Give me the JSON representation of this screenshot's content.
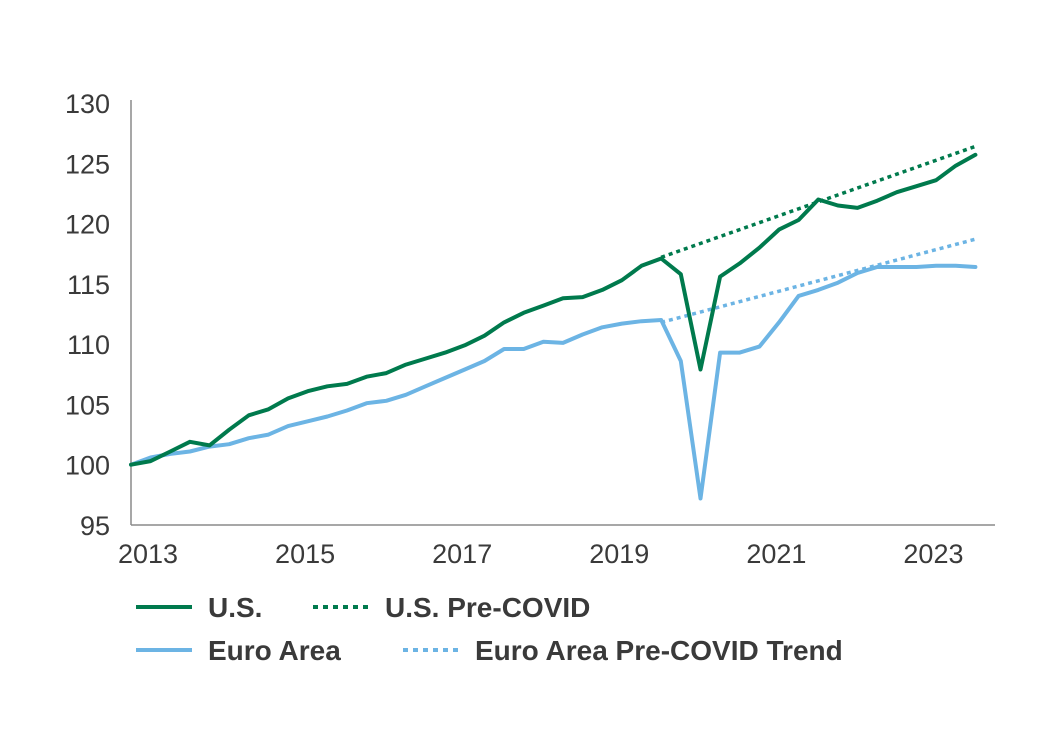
{
  "chart_data": {
    "type": "line",
    "ylim": [
      95,
      130
    ],
    "xlim": [
      2013.0,
      2024.0
    ],
    "yticks": [
      95,
      100,
      105,
      110,
      115,
      120,
      125,
      130
    ],
    "xticks": [
      2013,
      2015,
      2017,
      2019,
      2021,
      2023
    ],
    "ytick_labels": [
      "95",
      "100",
      "105",
      "110",
      "115",
      "120",
      "125",
      "130"
    ],
    "xtick_labels": [
      "2013",
      "2015",
      "2017",
      "2019",
      "2021",
      "2023"
    ],
    "grid": false,
    "legend_position": "bottom",
    "series": [
      {
        "name": "U.S.",
        "color": "#007A4D",
        "style": "solid",
        "points": [
          [
            2013.0,
            100.0
          ],
          [
            2013.25,
            100.3
          ],
          [
            2013.5,
            101.1
          ],
          [
            2013.75,
            101.9
          ],
          [
            2014.0,
            101.6
          ],
          [
            2014.25,
            102.9
          ],
          [
            2014.5,
            104.1
          ],
          [
            2014.75,
            104.6
          ],
          [
            2015.0,
            105.5
          ],
          [
            2015.25,
            106.1
          ],
          [
            2015.5,
            106.5
          ],
          [
            2015.75,
            106.7
          ],
          [
            2016.0,
            107.3
          ],
          [
            2016.25,
            107.6
          ],
          [
            2016.5,
            108.3
          ],
          [
            2016.75,
            108.8
          ],
          [
            2017.0,
            109.3
          ],
          [
            2017.25,
            109.9
          ],
          [
            2017.5,
            110.7
          ],
          [
            2017.75,
            111.8
          ],
          [
            2018.0,
            112.6
          ],
          [
            2018.25,
            113.2
          ],
          [
            2018.5,
            113.8
          ],
          [
            2018.75,
            113.9
          ],
          [
            2019.0,
            114.5
          ],
          [
            2019.25,
            115.3
          ],
          [
            2019.5,
            116.5
          ],
          [
            2019.75,
            117.1
          ],
          [
            2020.0,
            115.8
          ],
          [
            2020.25,
            107.9
          ],
          [
            2020.5,
            115.6
          ],
          [
            2020.75,
            116.7
          ],
          [
            2021.0,
            118.0
          ],
          [
            2021.25,
            119.5
          ],
          [
            2021.5,
            120.3
          ],
          [
            2021.75,
            122.0
          ],
          [
            2022.0,
            121.5
          ],
          [
            2022.25,
            121.3
          ],
          [
            2022.5,
            121.9
          ],
          [
            2022.75,
            122.6
          ],
          [
            2023.0,
            123.1
          ],
          [
            2023.25,
            123.6
          ],
          [
            2023.5,
            124.8
          ],
          [
            2023.75,
            125.7
          ]
        ]
      },
      {
        "name": "U.S. Pre-COVID",
        "color": "#007A4D",
        "style": "dotted",
        "points": [
          [
            2019.75,
            117.2
          ],
          [
            2023.75,
            126.4
          ]
        ]
      },
      {
        "name": "Euro Area",
        "color": "#6CB4E4",
        "style": "solid",
        "points": [
          [
            2013.0,
            100.0
          ],
          [
            2013.25,
            100.6
          ],
          [
            2013.5,
            100.9
          ],
          [
            2013.75,
            101.1
          ],
          [
            2014.0,
            101.5
          ],
          [
            2014.25,
            101.7
          ],
          [
            2014.5,
            102.2
          ],
          [
            2014.75,
            102.5
          ],
          [
            2015.0,
            103.2
          ],
          [
            2015.25,
            103.6
          ],
          [
            2015.5,
            104.0
          ],
          [
            2015.75,
            104.5
          ],
          [
            2016.0,
            105.1
          ],
          [
            2016.25,
            105.3
          ],
          [
            2016.5,
            105.8
          ],
          [
            2016.75,
            106.5
          ],
          [
            2017.0,
            107.2
          ],
          [
            2017.25,
            107.9
          ],
          [
            2017.5,
            108.6
          ],
          [
            2017.75,
            109.6
          ],
          [
            2018.0,
            109.6
          ],
          [
            2018.25,
            110.2
          ],
          [
            2018.5,
            110.1
          ],
          [
            2018.75,
            110.8
          ],
          [
            2019.0,
            111.4
          ],
          [
            2019.25,
            111.7
          ],
          [
            2019.5,
            111.9
          ],
          [
            2019.75,
            112.0
          ],
          [
            2020.0,
            108.6
          ],
          [
            2020.25,
            97.2
          ],
          [
            2020.5,
            109.3
          ],
          [
            2020.75,
            109.3
          ],
          [
            2021.0,
            109.8
          ],
          [
            2021.25,
            111.8
          ],
          [
            2021.5,
            114.0
          ],
          [
            2021.75,
            114.5
          ],
          [
            2022.0,
            115.1
          ],
          [
            2022.25,
            115.9
          ],
          [
            2022.5,
            116.4
          ],
          [
            2022.75,
            116.4
          ],
          [
            2023.0,
            116.4
          ],
          [
            2023.25,
            116.5
          ],
          [
            2023.5,
            116.5
          ],
          [
            2023.75,
            116.4
          ]
        ]
      },
      {
        "name": "Euro Area Pre-COVID Trend",
        "color": "#6CB4E4",
        "style": "dotted",
        "points": [
          [
            2019.75,
            111.8
          ],
          [
            2023.75,
            118.7
          ]
        ]
      }
    ]
  },
  "legend": [
    {
      "label": "U.S.",
      "color": "#007A4D",
      "style": "solid"
    },
    {
      "label": "U.S. Pre-COVID",
      "color": "#007A4D",
      "style": "dotted"
    },
    {
      "label": "Euro Area",
      "color": "#6CB4E4",
      "style": "solid"
    },
    {
      "label": "Euro Area Pre-COVID Trend",
      "color": "#6CB4E4",
      "style": "dotted"
    }
  ]
}
